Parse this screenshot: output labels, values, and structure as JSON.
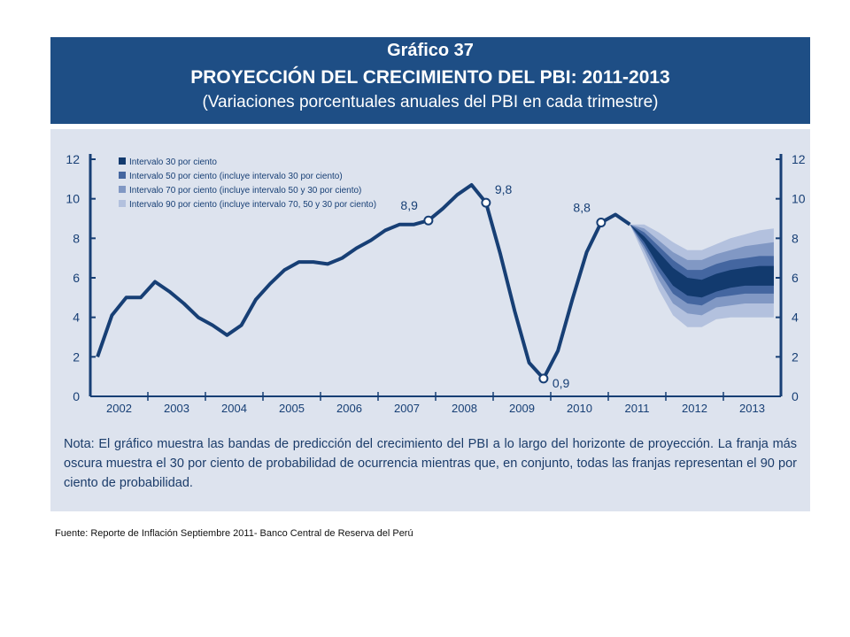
{
  "header": {
    "line1": "Gráfico 37",
    "line2": "PROYECCIÓN DEL CRECIMIENTO DEL PBI: 2011-2013",
    "line3": "(Variaciones porcentuales anuales del PBI en cada trimestre)"
  },
  "note": "Nota: El gráfico muestra las bandas de predicción del crecimiento del PBI a lo largo del horizonte de proyección. La franja más oscura muestra el 30 por ciento de probabilidad de ocurrencia mientras que, en conjunto, todas las franjas representan el 90 por ciento de probabilidad.",
  "source": "Fuente: Reporte de Inflación Septiembre 2011- Banco Central de Reserva del Perú",
  "colors": {
    "header_bg": "#1e4e85",
    "panel_bg": "#dde3ee",
    "line": "#173f75",
    "band_30": "#123a6e",
    "band_50": "#4466a0",
    "band_70": "#8198c4",
    "band_90": "#b3c1de"
  },
  "chart_data": {
    "type": "line",
    "ylim": [
      0,
      12
    ],
    "yticks": [
      0,
      2,
      4,
      6,
      8,
      10,
      12
    ],
    "grid": false,
    "legend_position": "top-left",
    "x_labels": [
      "2002",
      "2003",
      "2004",
      "2005",
      "2006",
      "2007",
      "2008",
      "2009",
      "2010",
      "2011",
      "2012",
      "2013"
    ],
    "legend": [
      "Intervalo 30 por ciento",
      "Intervalo 50 por ciento (incluye intervalo 30 por ciento)",
      "Intervalo 70 por ciento (incluye intervalo 50 y 30 por ciento)",
      "Intervalo 90 por ciento (incluye intervalo 70, 50 y 30 por ciento)"
    ],
    "quarters": [
      "2002T1",
      "2002T2",
      "2002T3",
      "2002T4",
      "2003T1",
      "2003T2",
      "2003T3",
      "2003T4",
      "2004T1",
      "2004T2",
      "2004T3",
      "2004T4",
      "2005T1",
      "2005T2",
      "2005T3",
      "2005T4",
      "2006T1",
      "2006T2",
      "2006T3",
      "2006T4",
      "2007T1",
      "2007T2",
      "2007T3",
      "2007T4",
      "2008T1",
      "2008T2",
      "2008T3",
      "2008T4",
      "2009T1",
      "2009T2",
      "2009T3",
      "2009T4",
      "2010T1",
      "2010T2",
      "2010T3",
      "2010T4",
      "2011T1",
      "2011T2",
      "2011T3",
      "2011T4",
      "2012T1",
      "2012T2",
      "2012T3",
      "2012T4",
      "2013T1",
      "2013T2",
      "2013T3",
      "2013T4"
    ],
    "series": [
      {
        "values": [
          2.0,
          4.1,
          5.0,
          5.0,
          5.8,
          5.3,
          4.7,
          4.0,
          3.6,
          3.1,
          3.6,
          4.9,
          5.7,
          6.4,
          6.8,
          6.8,
          6.7,
          7.0,
          7.5,
          7.9,
          8.4,
          8.7,
          8.7,
          8.9,
          9.5,
          10.2,
          10.7,
          9.8,
          7.2,
          4.3,
          1.7,
          0.9,
          2.3,
          4.9,
          7.3,
          8.8,
          9.2,
          8.7
        ]
      }
    ],
    "annotations": [
      {
        "quarter": "2007T4",
        "value": 8.9,
        "text": "8,9"
      },
      {
        "quarter": "2008T4",
        "value": 9.8,
        "text": "9,8"
      },
      {
        "quarter": "2009T4",
        "value": 0.9,
        "text": "0,9"
      },
      {
        "quarter": "2010T4",
        "value": 8.8,
        "text": "8,8"
      }
    ],
    "fan_quarters": [
      "2011T2",
      "2011T3",
      "2011T4",
      "2012T1",
      "2012T2",
      "2012T3",
      "2012T4",
      "2013T1",
      "2013T2",
      "2013T3",
      "2013T4"
    ],
    "bands": {
      "center": [
        8.7,
        8.0,
        7.0,
        6.1,
        5.5,
        5.4,
        5.7,
        5.9,
        6.0,
        6.1,
        6.1
      ],
      "i30": {
        "low": [
          8.7,
          7.8,
          6.6,
          5.6,
          5.1,
          5.0,
          5.3,
          5.5,
          5.6,
          5.6,
          5.6
        ],
        "high": [
          8.7,
          8.1,
          7.3,
          6.5,
          6.0,
          5.9,
          6.2,
          6.4,
          6.5,
          6.6,
          6.6
        ]
      },
      "i50": {
        "low": [
          8.7,
          7.6,
          6.3,
          5.2,
          4.7,
          4.6,
          5.0,
          5.1,
          5.2,
          5.2,
          5.2
        ],
        "high": [
          8.7,
          8.3,
          7.6,
          6.9,
          6.4,
          6.4,
          6.7,
          6.9,
          7.0,
          7.1,
          7.1
        ]
      },
      "i70": {
        "low": [
          8.7,
          7.4,
          5.9,
          4.7,
          4.2,
          4.1,
          4.5,
          4.6,
          4.7,
          4.7,
          4.7
        ],
        "high": [
          8.7,
          8.5,
          7.9,
          7.3,
          6.9,
          6.9,
          7.2,
          7.4,
          7.6,
          7.7,
          7.8
        ]
      },
      "i90": {
        "low": [
          8.7,
          7.1,
          5.4,
          4.1,
          3.5,
          3.5,
          3.9,
          4.0,
          4.0,
          4.0,
          4.0
        ],
        "high": [
          8.7,
          8.7,
          8.3,
          7.8,
          7.4,
          7.4,
          7.7,
          8.0,
          8.2,
          8.4,
          8.5
        ]
      }
    }
  }
}
